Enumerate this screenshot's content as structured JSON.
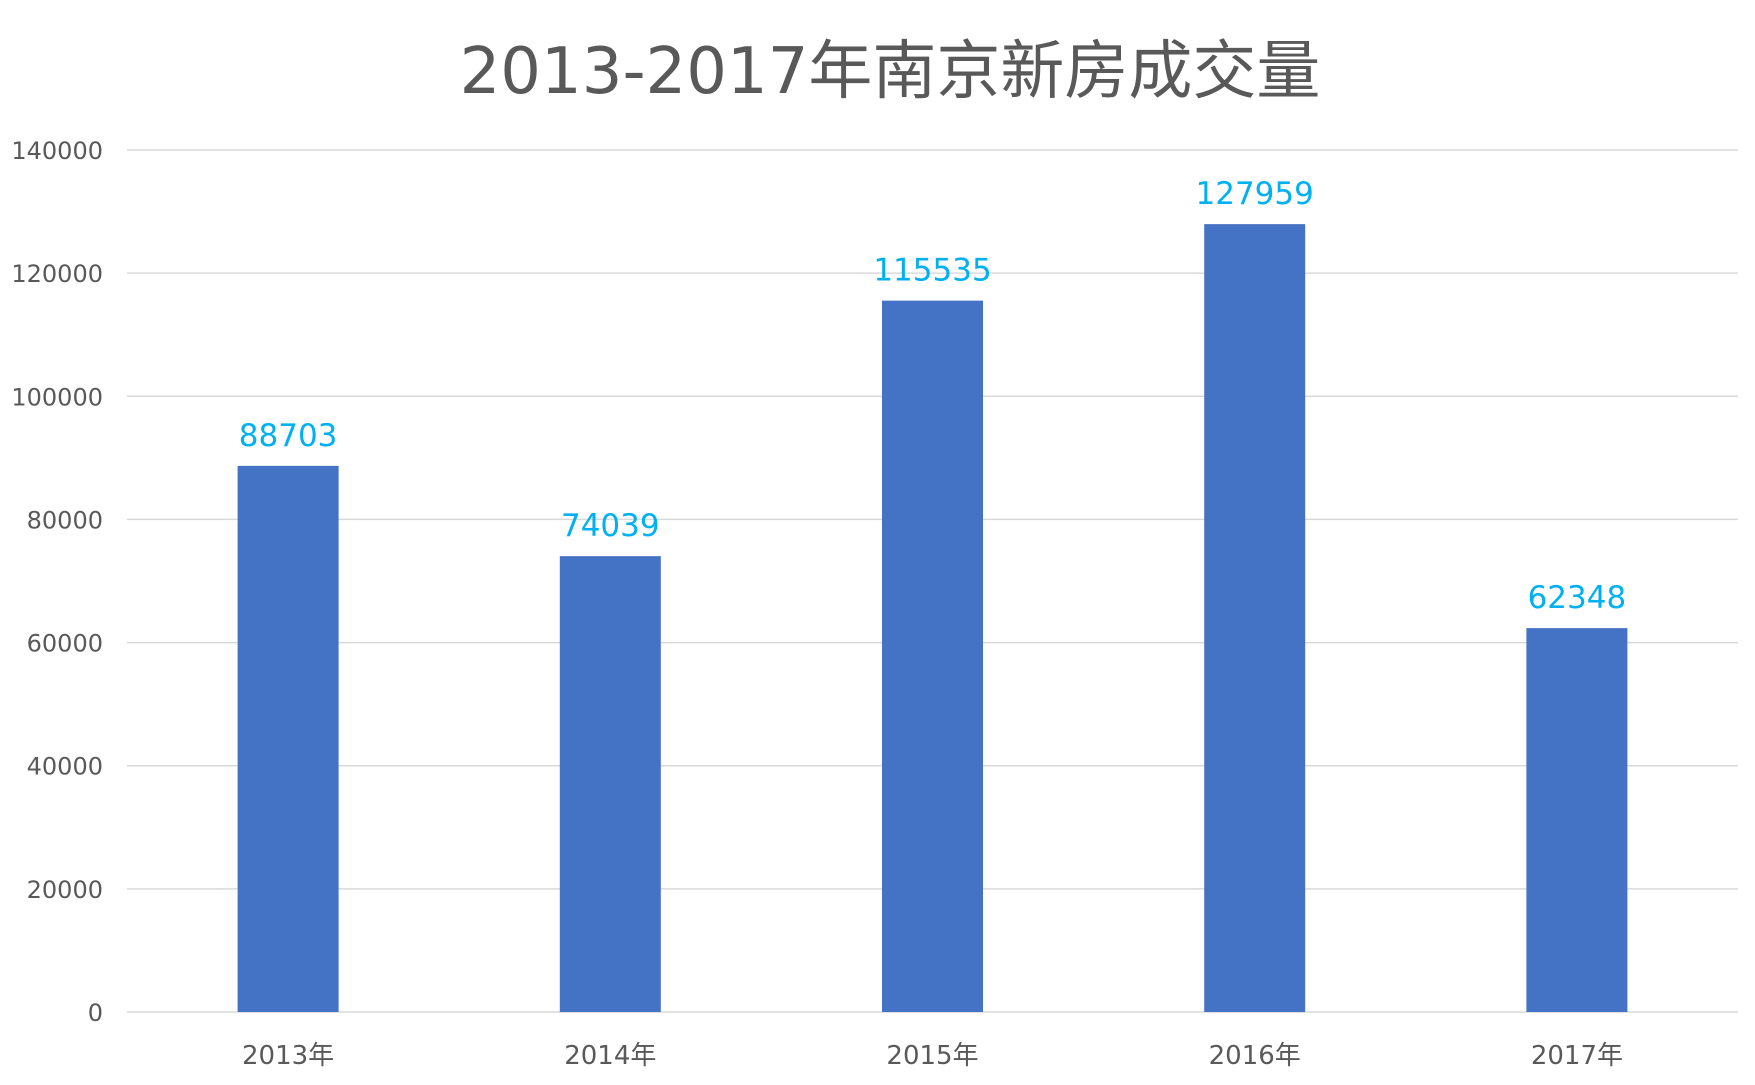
{
  "chart_data": {
    "type": "bar",
    "title": "2013-2017年南京新房成交量",
    "xlabel": "",
    "ylabel": "",
    "categories": [
      "2013年",
      "2014年",
      "2015年",
      "2016年",
      "2017年"
    ],
    "values": [
      88703,
      74039,
      115535,
      127959,
      62348
    ],
    "data_labels": [
      "88703",
      "74039",
      "115535",
      "127959",
      "62348"
    ],
    "ylim": [
      0,
      140000
    ],
    "yticks": [
      0,
      20000,
      40000,
      60000,
      80000,
      100000,
      120000,
      140000
    ],
    "ytick_labels": [
      "0",
      "20000",
      "40000",
      "60000",
      "80000",
      "100000",
      "120000",
      "140000"
    ],
    "grid": true,
    "legend": "none",
    "colors": {
      "bar": "#4472c4",
      "data_label": "#00b0f0",
      "grid": "#d9d9d9"
    }
  }
}
